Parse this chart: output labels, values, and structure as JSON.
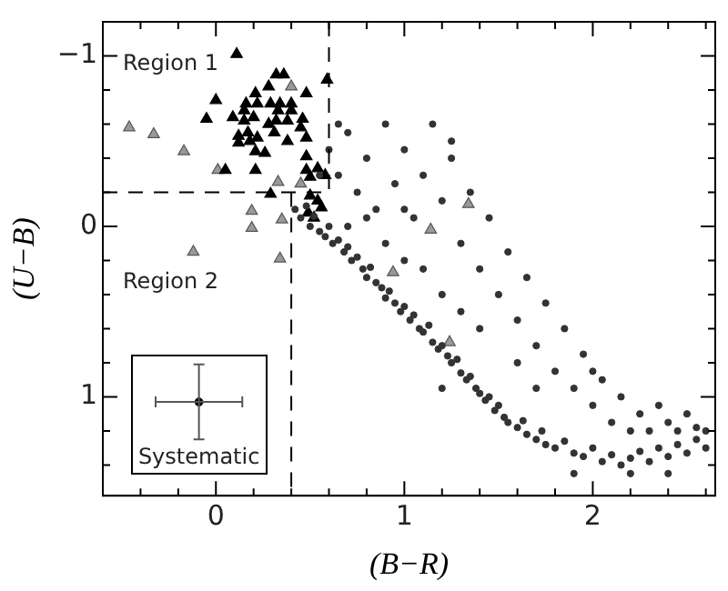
{
  "chart_data": {
    "type": "scatter",
    "xlabel": "(B−R)",
    "ylabel": "(U−B)",
    "xlim": [
      -0.6,
      2.65
    ],
    "ylim": [
      1.58,
      -1.2
    ],
    "xticks": [
      {
        "value": -0.4,
        "label": null
      },
      {
        "value": -0.2,
        "label": null
      },
      0,
      {
        "value": 0.2,
        "label": null
      },
      {
        "value": 0.4,
        "label": null
      },
      {
        "value": 0.6,
        "label": null
      },
      {
        "value": 0.8,
        "label": null
      },
      1,
      {
        "value": 1.2,
        "label": null
      },
      {
        "value": 1.4,
        "label": null
      },
      {
        "value": 1.6,
        "label": null
      },
      {
        "value": 1.8,
        "label": null
      },
      2,
      {
        "value": 2.2,
        "label": null
      },
      {
        "value": 2.4,
        "label": null
      },
      {
        "value": 2.6,
        "label": null
      }
    ],
    "yticks": [
      {
        "value": -1,
        "label": "−1"
      },
      {
        "value": -0.8,
        "label": null
      },
      {
        "value": -0.6,
        "label": null
      },
      {
        "value": -0.4,
        "label": null
      },
      {
        "value": -0.2,
        "label": null
      },
      0,
      {
        "value": 0.2,
        "label": null
      },
      {
        "value": 0.4,
        "label": null
      },
      {
        "value": 0.6,
        "label": null
      },
      {
        "value": 0.8,
        "label": null
      },
      1,
      {
        "value": 1.2,
        "label": null
      },
      {
        "value": 1.4,
        "label": null
      }
    ],
    "grid": false,
    "legend": "bottom left",
    "annotations": [
      "Region 1",
      "Region 2"
    ],
    "series": [
      {
        "type": "line",
        "color": "#000000",
        "line_style": "dashed",
        "marker": "none",
        "x": [
          -0.6,
          0.6
        ],
        "values": [
          -0.2,
          -0.2
        ]
      },
      {
        "type": "line",
        "color": "#000000",
        "line_style": "dashed",
        "marker": "none",
        "x": [
          0.6,
          0.6
        ],
        "values": [
          -1.2,
          -0.2
        ]
      },
      {
        "type": "line",
        "color": "#000000",
        "line_style": "dashed",
        "marker": "none",
        "x": [
          0.4,
          0.4
        ],
        "values": [
          -0.2,
          1.58
        ]
      },
      {
        "color": "#333333",
        "marker": "circle",
        "x": [
          0.42,
          0.45,
          0.48,
          0.5,
          0.52,
          0.55,
          0.58,
          0.6,
          0.62,
          0.65,
          0.68,
          0.7,
          0.72,
          0.75,
          0.78,
          0.8,
          0.82,
          0.85,
          0.88,
          0.9,
          0.92,
          0.95,
          0.98,
          1.0,
          1.03,
          1.05,
          1.08,
          1.1,
          1.13,
          1.15,
          1.18,
          1.2,
          1.23,
          1.25,
          1.28,
          1.3,
          1.33,
          1.35,
          1.38,
          1.4,
          1.43,
          1.45,
          1.48,
          1.5,
          1.53,
          1.55,
          1.6,
          1.63,
          1.65,
          1.7,
          1.73,
          1.75,
          1.8,
          1.85,
          1.9,
          1.95,
          2.0,
          2.05,
          2.1,
          2.15,
          2.2,
          2.25,
          2.3,
          2.35,
          2.4,
          2.45,
          2.5,
          2.55,
          2.6,
          0.6,
          0.65,
          0.7,
          0.75,
          0.8,
          0.85,
          0.9,
          0.95,
          1.0,
          1.05,
          1.1,
          1.15,
          1.2,
          1.25,
          1.3,
          1.35,
          1.4,
          1.45,
          1.5,
          1.55,
          1.6,
          1.65,
          1.7,
          1.75,
          1.8,
          1.85,
          1.9,
          1.95,
          2.0,
          2.05,
          2.1,
          2.15,
          2.2,
          2.25,
          2.3,
          2.35,
          2.4,
          2.45,
          2.5,
          2.55,
          2.6,
          0.7,
          0.9,
          1.0,
          1.1,
          1.2,
          1.3,
          1.0,
          0.8,
          1.6,
          1.7,
          1.4,
          0.55,
          0.65,
          1.25,
          2.0,
          2.2,
          2.4,
          1.9,
          1.2
        ],
        "values": [
          -0.1,
          -0.05,
          -0.12,
          0.0,
          -0.06,
          0.03,
          0.06,
          0.0,
          0.1,
          0.08,
          0.15,
          0.12,
          0.2,
          0.18,
          0.25,
          0.3,
          0.24,
          0.33,
          0.36,
          0.42,
          0.38,
          0.45,
          0.5,
          0.47,
          0.55,
          0.52,
          0.6,
          0.62,
          0.58,
          0.68,
          0.72,
          0.7,
          0.76,
          0.8,
          0.78,
          0.86,
          0.9,
          0.88,
          0.95,
          0.98,
          1.02,
          1.0,
          1.08,
          1.05,
          1.12,
          1.15,
          1.18,
          1.14,
          1.22,
          1.25,
          1.2,
          1.28,
          1.3,
          1.26,
          1.33,
          1.35,
          1.3,
          1.38,
          1.34,
          1.4,
          1.36,
          1.32,
          1.38,
          1.3,
          1.35,
          1.28,
          1.33,
          1.25,
          1.3,
          -0.45,
          -0.3,
          -0.55,
          -0.2,
          -0.4,
          -0.1,
          -0.6,
          -0.25,
          -0.45,
          -0.05,
          -0.3,
          -0.6,
          -0.15,
          -0.4,
          0.1,
          -0.2,
          0.25,
          -0.05,
          0.4,
          0.15,
          0.55,
          0.3,
          0.7,
          0.45,
          0.85,
          0.6,
          0.95,
          0.75,
          1.05,
          0.9,
          1.15,
          1.0,
          1.2,
          1.1,
          1.2,
          1.05,
          1.15,
          1.2,
          1.1,
          1.18,
          1.2,
          0.0,
          0.1,
          0.2,
          0.25,
          0.4,
          0.5,
          -0.1,
          -0.05,
          0.8,
          0.95,
          0.6,
          -0.3,
          -0.6,
          -0.5,
          0.85,
          1.45,
          1.45,
          1.45,
          0.95
        ]
      },
      {
        "color": "#000000",
        "marker": "triangle",
        "x": [
          0.11,
          0.32,
          0.36,
          0.59,
          0.21,
          0.28,
          0.48,
          0.0,
          0.16,
          0.22,
          0.29,
          0.34,
          0.4,
          0.15,
          0.33,
          0.4,
          -0.05,
          0.09,
          0.15,
          0.2,
          0.28,
          0.32,
          0.38,
          0.46,
          0.45,
          0.12,
          0.17,
          0.22,
          0.31,
          0.12,
          0.18,
          0.38,
          0.48,
          0.26,
          0.21,
          0.48,
          0.05,
          0.21,
          0.48,
          0.54,
          0.5,
          0.58,
          0.29,
          0.5,
          0.54,
          0.56,
          0.49,
          0.52
        ],
        "values": [
          -1.01,
          -0.89,
          -0.89,
          -0.86,
          -0.78,
          -0.82,
          -0.78,
          -0.74,
          -0.72,
          -0.72,
          -0.72,
          -0.72,
          -0.72,
          -0.68,
          -0.68,
          -0.68,
          -0.63,
          -0.64,
          -0.62,
          -0.64,
          -0.6,
          -0.62,
          -0.62,
          -0.63,
          -0.58,
          -0.53,
          -0.55,
          -0.52,
          -0.55,
          -0.49,
          -0.5,
          -0.5,
          -0.52,
          -0.43,
          -0.44,
          -0.41,
          -0.33,
          -0.33,
          -0.33,
          -0.34,
          -0.29,
          -0.3,
          -0.19,
          -0.18,
          -0.15,
          -0.11,
          -0.08,
          -0.05
        ]
      },
      {
        "color": "#999999",
        "marker": "triangle",
        "x": [
          -0.46,
          -0.33,
          -0.17,
          0.01,
          0.33,
          0.4,
          0.19,
          0.19,
          -0.12,
          0.34,
          0.35,
          0.45,
          1.34,
          1.14,
          0.94,
          1.24
        ],
        "values": [
          -0.58,
          -0.54,
          -0.44,
          -0.33,
          -0.26,
          -0.82,
          -0.09,
          0.01,
          0.15,
          0.19,
          -0.04,
          -0.25,
          -0.13,
          0.02,
          0.27,
          0.68
        ]
      },
      {
        "name": "Systematic",
        "color": "#000000",
        "marker": "circle",
        "x": [
          -0.09
        ],
        "values": [
          1.03
        ],
        "errors": [
          0.22
        ],
        "xerrors": [
          0.23
        ]
      }
    ]
  }
}
